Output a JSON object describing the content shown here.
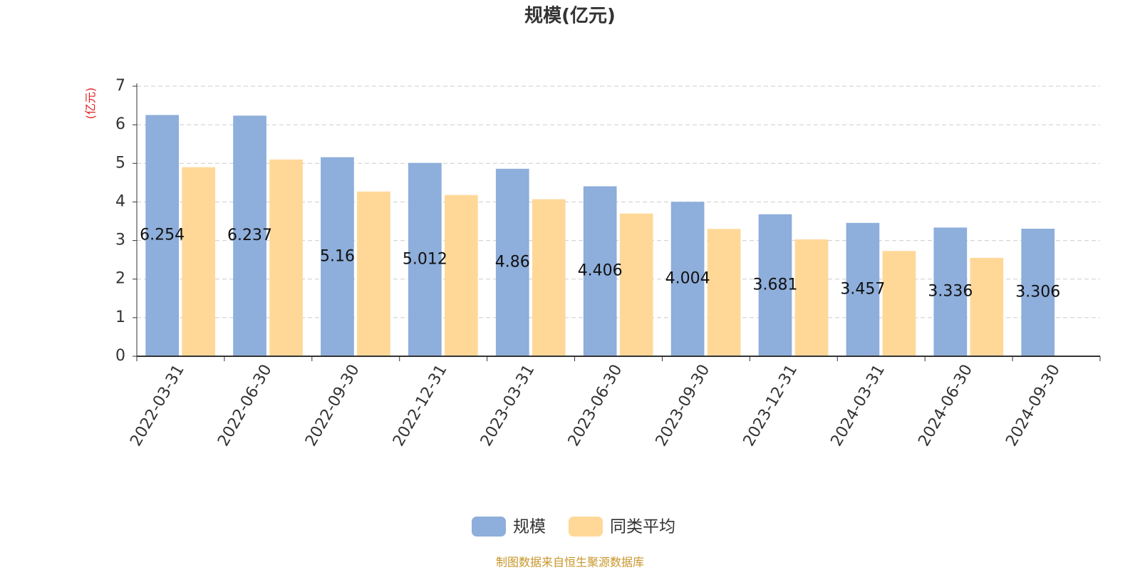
{
  "chart_data": {
    "type": "bar",
    "title": "规模(亿元)",
    "y_unit": "(亿元)",
    "source": "制图数据来自恒生聚源数据库",
    "categories": [
      "2022-03-31",
      "2022-06-30",
      "2022-09-30",
      "2022-12-31",
      "2023-03-31",
      "2023-06-30",
      "2023-09-30",
      "2023-12-31",
      "2024-03-31",
      "2024-06-30",
      "2024-09-30"
    ],
    "series": [
      {
        "name": "规模",
        "color": "#8eaedb",
        "values": [
          6.254,
          6.237,
          5.16,
          5.012,
          4.86,
          4.406,
          4.004,
          3.681,
          3.457,
          3.336,
          3.306
        ]
      },
      {
        "name": "同类平均",
        "color": "#ffd898",
        "values": [
          4.9,
          5.1,
          4.27,
          4.18,
          4.07,
          3.7,
          3.3,
          3.03,
          2.73,
          2.55,
          null
        ]
      }
    ],
    "ylim": [
      0,
      7
    ],
    "yticks": [
      0,
      1,
      2,
      3,
      4,
      5,
      6,
      7
    ],
    "grid": true
  }
}
